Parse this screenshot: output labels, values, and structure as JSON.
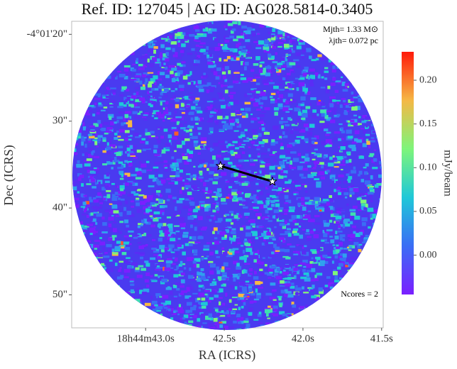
{
  "chart_data": {
    "type": "image",
    "title": "Ref. ID: 127045 | AG ID: AG028.5814-0.3405",
    "x_label": "RA (ICRS)",
    "y_label": "Dec (ICRS)",
    "xlim": [
      43.47,
      41.49
    ],
    "xticks": [
      {
        "value": 43.0,
        "label": "18h44m43.0s"
      },
      {
        "value": 42.5,
        "label": "42.5s"
      },
      {
        "value": 42.0,
        "label": "42.0s"
      },
      {
        "value": 41.5,
        "label": "41.5s"
      }
    ],
    "ylim": [
      53.8,
      18.5
    ],
    "yticks": [
      {
        "value": 20,
        "label": "-4°01'20\""
      },
      {
        "value": 30,
        "label": "30\""
      },
      {
        "value": 40,
        "label": "40\""
      },
      {
        "value": 50,
        "label": "50\""
      }
    ],
    "colorbar": {
      "label": "mJy/beam",
      "lim": [
        -0.045,
        0.2325
      ],
      "ticks": [
        {
          "value": 0,
          "label": "0.00"
        },
        0.05,
        {
          "value": 0.1,
          "label": "0.10"
        },
        0.15,
        {
          "value": 0.2,
          "label": "0.20"
        }
      ]
    },
    "cores": {
      "x": [
        42.524,
        42.194
      ],
      "y": [
        35.15,
        36.95
      ],
      "color": "#000000"
    },
    "annotations": [
      "Mjth= 1.33 M⊙",
      "λjth= 0.072 pc",
      "Ncores = 2"
    ]
  }
}
